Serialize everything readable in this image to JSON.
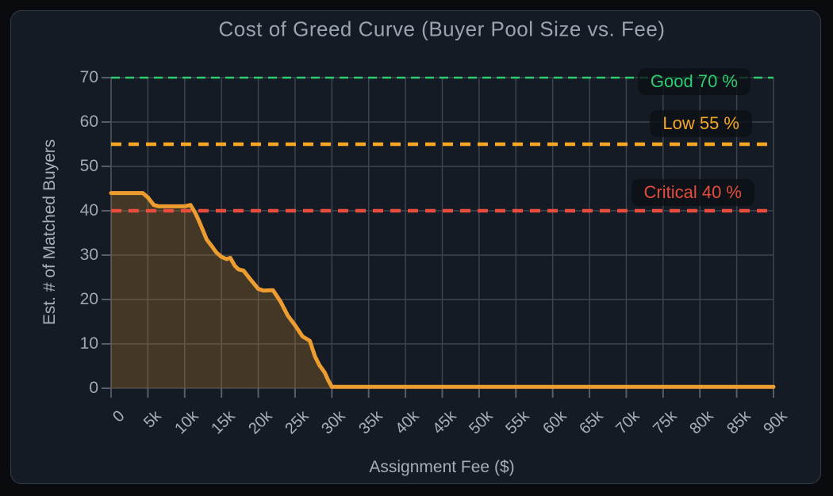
{
  "chart_data": {
    "type": "area",
    "title": "Cost of Greed Curve (Buyer Pool Size vs. Fee)",
    "xlabel": "Assignment Fee ($)",
    "ylabel": "Est. # of Matched Buyers",
    "xlim": [
      0,
      90000
    ],
    "ylim": [
      0,
      70
    ],
    "grid": true,
    "x_ticks": [
      "0",
      "5k",
      "10k",
      "15k",
      "20k",
      "25k",
      "30k",
      "35k",
      "40k",
      "45k",
      "50k",
      "55k",
      "60k",
      "65k",
      "70k",
      "75k",
      "80k",
      "85k",
      "90k"
    ],
    "x_tick_values": [
      0,
      5000,
      10000,
      15000,
      20000,
      25000,
      30000,
      35000,
      40000,
      45000,
      50000,
      55000,
      60000,
      65000,
      70000,
      75000,
      80000,
      85000,
      90000
    ],
    "y_ticks": [
      "0",
      "10",
      "20",
      "30",
      "40",
      "50",
      "60",
      "70"
    ],
    "y_tick_values": [
      0,
      10,
      20,
      30,
      40,
      50,
      60,
      70
    ],
    "series": [
      {
        "name": "Estimated matched buyers vs assignment fee",
        "color": "#ed9c2f",
        "fill_color": "#ed9c2f",
        "fill_opacity": 0.22,
        "points": [
          [
            0,
            44
          ],
          [
            4300,
            44
          ],
          [
            5000,
            43
          ],
          [
            5800,
            41.3
          ],
          [
            6500,
            41
          ],
          [
            10000,
            41
          ],
          [
            10800,
            41.3
          ],
          [
            11500,
            39.3
          ],
          [
            12000,
            37.5
          ],
          [
            13000,
            33.5
          ],
          [
            13700,
            32
          ],
          [
            14300,
            30.6
          ],
          [
            15000,
            29.6
          ],
          [
            15700,
            29.1
          ],
          [
            16200,
            29.4
          ],
          [
            16800,
            27.6
          ],
          [
            17300,
            26.8
          ],
          [
            18000,
            26.5
          ],
          [
            19000,
            24.4
          ],
          [
            20000,
            22.4
          ],
          [
            20700,
            22
          ],
          [
            22000,
            22.1
          ],
          [
            23000,
            19.6
          ],
          [
            24000,
            16.4
          ],
          [
            25000,
            14.2
          ],
          [
            26000,
            11.7
          ],
          [
            27000,
            10.7
          ],
          [
            27700,
            7.2
          ],
          [
            28300,
            5.2
          ],
          [
            29000,
            3.6
          ],
          [
            29500,
            1.8
          ],
          [
            30000,
            0.3
          ],
          [
            90000,
            0.3
          ]
        ]
      }
    ],
    "thresholds": [
      {
        "label": "Good 70 %",
        "value": 70,
        "color": "#2ecc71",
        "stroke_width": 2.5,
        "dash": "11 7"
      },
      {
        "label": "Low 55 %",
        "value": 55,
        "color": "#f5a623",
        "stroke_width": 4.5,
        "dash": "13 9"
      },
      {
        "label": "Critical 40 %",
        "value": 40,
        "color": "#e74c3c",
        "stroke_width": 4.5,
        "dash": "13 9"
      }
    ],
    "colors": {
      "outer_background": "#0a0b0e",
      "card_background": "#151b24",
      "card_border": "#343c47",
      "grid": "#3d444e",
      "tick": "#565e68",
      "spine": "#4a525c",
      "title_text": "#9aa4ae",
      "axis_text": "#a6aeb8"
    }
  }
}
